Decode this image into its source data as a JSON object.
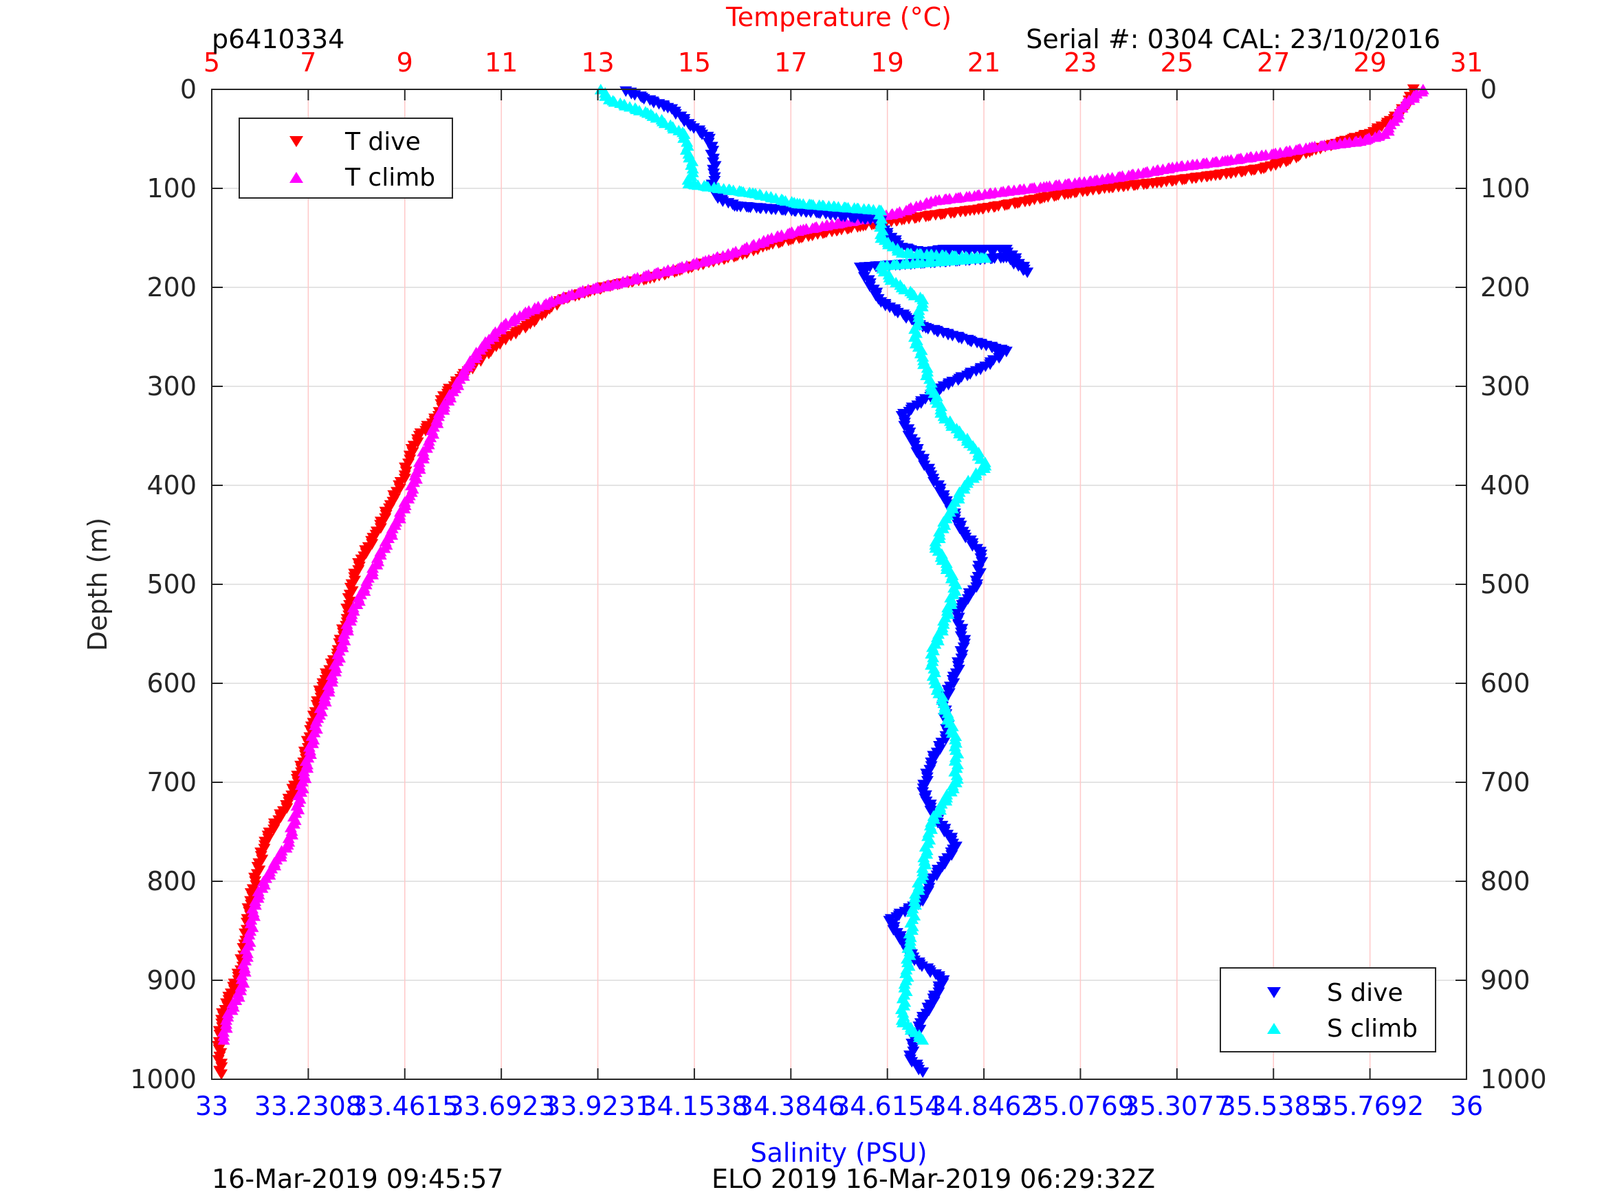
{
  "header": {
    "profile_id": "p6410334",
    "serial": "Serial #: 0304  CAL: 23/10/2016"
  },
  "footer": {
    "left": "16-Mar-2019 09:45:57",
    "center": "ELO 2019 16-Mar-2019 06:29:32Z"
  },
  "chart_data": {
    "type": "scatter",
    "title": "",
    "y_axis": {
      "label": "Depth (m)",
      "range": [
        0,
        1000
      ],
      "reversed": true,
      "ticks": [
        "0",
        "100",
        "200",
        "300",
        "400",
        "500",
        "600",
        "700",
        "800",
        "900",
        "1000"
      ]
    },
    "x_axis_top": {
      "label": "Temperature (°C)",
      "range": [
        5,
        31
      ],
      "color": "#ff0000",
      "ticks": [
        "5",
        "7",
        "9",
        "11",
        "13",
        "15",
        "17",
        "19",
        "21",
        "23",
        "25",
        "27",
        "29",
        "31"
      ]
    },
    "x_axis_bottom": {
      "label": "Salinity (PSU)",
      "range": [
        33,
        36
      ],
      "color": "#0000ff",
      "ticks": [
        "33",
        "33.2308",
        "33.4615",
        "33.6923",
        "33.9231",
        "34.1538",
        "34.3846",
        "34.6154",
        "34.8462",
        "35.0769",
        "35.3077",
        "35.5385",
        "35.7692",
        "36"
      ]
    },
    "grid": {
      "temperature_vertical": true,
      "depth_horizontal": true
    },
    "legends": [
      {
        "position": "top-left",
        "entries": [
          {
            "label": "T dive",
            "color": "#ff0000",
            "marker": "triangle-down"
          },
          {
            "label": "T climb",
            "color": "#ff00ff",
            "marker": "triangle-up"
          }
        ]
      },
      {
        "position": "bottom-right",
        "entries": [
          {
            "label": "S dive",
            "color": "#0000ff",
            "marker": "triangle-down"
          },
          {
            "label": "S climb",
            "color": "#00ffff",
            "marker": "triangle-up"
          }
        ]
      }
    ],
    "series": [
      {
        "name": "T dive",
        "axis": "temperature",
        "color": "#ff0000",
        "marker": "triangle-down",
        "x": [
          29.9,
          29.8,
          29.5,
          29.0,
          28.3,
          27.8,
          27.3,
          26.8,
          25.8,
          24.5,
          23.5,
          22.8,
          22.2,
          21.7,
          20.8,
          20.0,
          19.3,
          18.5,
          17.7,
          17.0,
          16.5,
          16.0,
          15.3,
          14.7,
          14.0,
          13.3,
          12.8,
          12.3,
          12.0,
          11.6,
          11.0,
          10.6,
          10.2,
          9.8,
          9.7,
          9.3,
          9.1,
          9.0,
          8.7,
          8.4,
          8.1,
          7.9,
          7.8,
          7.6,
          7.3,
          7.1,
          6.9,
          6.6,
          6.1,
          5.9,
          5.8,
          5.7,
          5.6,
          5.35,
          5.2,
          5.15,
          5.2
        ],
        "y": [
          0,
          15,
          30,
          45,
          55,
          62,
          72,
          80,
          87,
          95,
          100,
          105,
          110,
          115,
          122,
          127,
          132,
          138,
          145,
          152,
          158,
          167,
          175,
          183,
          192,
          198,
          205,
          212,
          222,
          237,
          255,
          272,
          290,
          310,
          330,
          350,
          370,
          390,
          420,
          450,
          475,
          500,
          535,
          570,
          600,
          640,
          680,
          720,
          760,
          800,
          820,
          860,
          890,
          920,
          940,
          970,
          995
        ]
      },
      {
        "name": "T climb",
        "axis": "temperature",
        "color": "#ff00ff",
        "marker": "triangle-up",
        "x": [
          30.1,
          29.7,
          29.5,
          29.3,
          28.8,
          27.8,
          27.0,
          26.0,
          25.0,
          24.2,
          23.3,
          22.3,
          21.4,
          20.7,
          20.0,
          19.6,
          19.2,
          18.6,
          18.0,
          17.2,
          16.6,
          16.2,
          15.8,
          15.3,
          14.7,
          14.0,
          13.4,
          12.8,
          12.4,
          12.0,
          11.5,
          11.0,
          10.6,
          10.3,
          10.0,
          9.7,
          9.5,
          9.3,
          9.1,
          8.8,
          8.5,
          8.2,
          7.9,
          7.7,
          7.5,
          7.2,
          7.0,
          6.8,
          6.6,
          6.2,
          5.9,
          5.8,
          5.7,
          5.6,
          5.3,
          5.25
        ],
        "y": [
          0,
          15,
          32,
          45,
          52,
          58,
          65,
          72,
          78,
          85,
          92,
          98,
          103,
          108,
          112,
          118,
          125,
          130,
          135,
          142,
          150,
          158,
          165,
          172,
          180,
          188,
          196,
          202,
          208,
          215,
          225,
          240,
          260,
          280,
          305,
          330,
          355,
          380,
          410,
          440,
          470,
          500,
          530,
          560,
          595,
          635,
          675,
          720,
          760,
          790,
          820,
          850,
          880,
          910,
          940,
          960
        ]
      },
      {
        "name": "S dive",
        "axis": "salinity",
        "color": "#0000ff",
        "marker": "triangle-down",
        "x": [
          33.99,
          34.1,
          34.14,
          34.19,
          34.2,
          34.2,
          34.2,
          34.21,
          34.25,
          34.45,
          34.6,
          34.6,
          34.65,
          34.7,
          34.75,
          34.9,
          34.95,
          34.9,
          34.55,
          34.6,
          34.7,
          34.9,
          34.85,
          34.75,
          34.65,
          34.68,
          34.72,
          34.75,
          34.8,
          34.84,
          34.83,
          34.78,
          34.8,
          34.78,
          34.75,
          34.76,
          34.72,
          34.7,
          34.73,
          34.78,
          34.72,
          34.7,
          34.62,
          34.68,
          34.75,
          34.7,
          34.68,
          34.67,
          34.7
        ],
        "y": [
          2,
          20,
          35,
          50,
          70,
          85,
          100,
          110,
          118,
          125,
          133,
          140,
          160,
          165,
          162,
          162,
          185,
          170,
          180,
          215,
          240,
          265,
          280,
          300,
          330,
          360,
          390,
          410,
          450,
          470,
          500,
          530,
          560,
          590,
          620,
          650,
          680,
          710,
          735,
          765,
          800,
          820,
          840,
          880,
          900,
          940,
          960,
          980,
          993
        ]
      },
      {
        "name": "S climb",
        "axis": "salinity",
        "color": "#00ffff",
        "marker": "triangle-up",
        "x": [
          33.93,
          33.95,
          34.05,
          34.13,
          34.14,
          34.15,
          34.14,
          34.3,
          34.4,
          34.6,
          34.6,
          34.6,
          34.65,
          34.85,
          34.6,
          34.62,
          34.65,
          34.7,
          34.69,
          34.68,
          34.7,
          34.72,
          34.75,
          34.82,
          34.85,
          34.8,
          34.76,
          34.73,
          34.78,
          34.75,
          34.72,
          34.73,
          34.75,
          34.78,
          34.78,
          34.72,
          34.7,
          34.68,
          34.67,
          34.66,
          34.65,
          34.7
        ],
        "y": [
          0,
          10,
          25,
          45,
          65,
          80,
          95,
          105,
          115,
          122,
          135,
          150,
          165,
          170,
          178,
          190,
          200,
          212,
          230,
          250,
          270,
          300,
          330,
          360,
          380,
          400,
          430,
          460,
          500,
          540,
          570,
          600,
          620,
          660,
          700,
          740,
          790,
          820,
          860,
          900,
          940,
          960
        ]
      }
    ]
  }
}
